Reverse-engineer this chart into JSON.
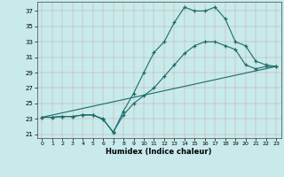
{
  "background_color": "#c8eaea",
  "line_color": "#1a6b6b",
  "xlim": [
    -0.5,
    23.5
  ],
  "ylim": [
    20.5,
    38.2
  ],
  "yticks": [
    21,
    23,
    25,
    27,
    29,
    31,
    33,
    35,
    37
  ],
  "xticks": [
    0,
    1,
    2,
    3,
    4,
    5,
    6,
    7,
    8,
    9,
    10,
    11,
    12,
    13,
    14,
    15,
    16,
    17,
    18,
    19,
    20,
    21,
    22,
    23
  ],
  "xlabel": "Humidex (Indice chaleur)",
  "line1_x": [
    0,
    1,
    2,
    3,
    4,
    5,
    6,
    7,
    8,
    9,
    10,
    11,
    12,
    13,
    14,
    15,
    16,
    17,
    18,
    19,
    20,
    21,
    22,
    23
  ],
  "line1_y": [
    23.2,
    23.2,
    23.3,
    23.3,
    23.5,
    23.5,
    22.9,
    21.3,
    23.5,
    25.0,
    26.0,
    27.0,
    28.5,
    30.0,
    31.5,
    32.5,
    33.0,
    33.0,
    32.5,
    32.0,
    30.0,
    29.5,
    29.8,
    29.8
  ],
  "line2_x": [
    0,
    1,
    2,
    3,
    4,
    5,
    6,
    7,
    8,
    9,
    10,
    11,
    12,
    13,
    14,
    15,
    16,
    17,
    18,
    19,
    20,
    21,
    22,
    23
  ],
  "line2_y": [
    23.2,
    23.2,
    23.3,
    23.3,
    23.5,
    23.5,
    23.0,
    21.2,
    24.0,
    26.3,
    29.0,
    31.6,
    33.0,
    35.5,
    37.5,
    37.0,
    37.0,
    37.5,
    36.0,
    33.0,
    32.5,
    30.5,
    30.0,
    29.8
  ],
  "line3_x": [
    0,
    23
  ],
  "line3_y": [
    23.2,
    29.8
  ]
}
